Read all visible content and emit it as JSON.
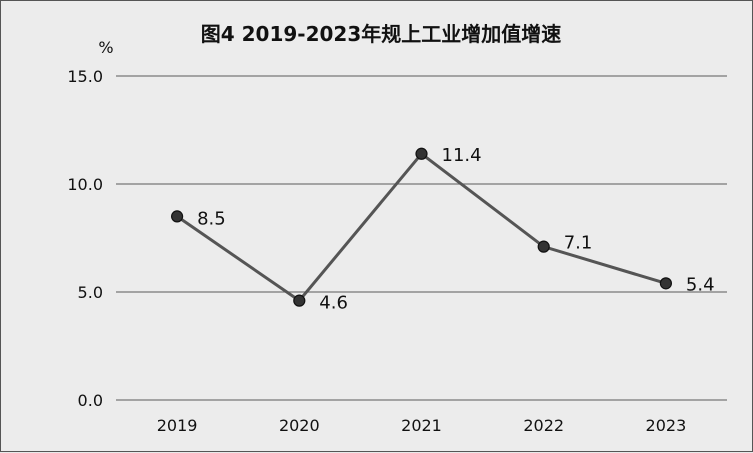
{
  "chart_data": {
    "type": "line",
    "title": "图4  2019-2023年规上工业增加值增速",
    "ylabel": "%",
    "xlabel": "",
    "categories": [
      "2019",
      "2020",
      "2021",
      "2022",
      "2023"
    ],
    "series": [
      {
        "values": [
          8.5,
          4.6,
          11.4,
          7.1,
          5.4
        ],
        "value_labels": [
          "8.5",
          "4.6",
          "11.4",
          "7.1",
          "5.4"
        ]
      }
    ],
    "ylim": [
      0,
      15
    ],
    "yticks": [
      0,
      5,
      10,
      15
    ],
    "ytick_labels": [
      "0.0",
      "5.0",
      "10.0",
      "15.0"
    ],
    "grid": true,
    "legend": "none"
  }
}
